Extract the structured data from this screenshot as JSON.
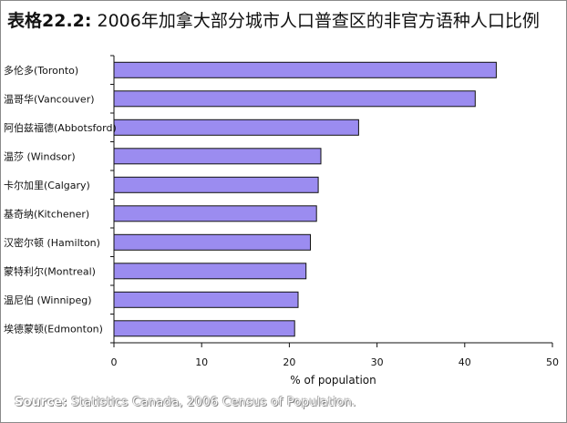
{
  "title_prefix": "表格22.2:",
  "title": "2006年加拿大部分城市人口普查区的非官方语种人口比例",
  "source_label": "Source:",
  "source_text": "Statistics Canada, 2006 Census of Population.",
  "colors": {
    "bar": "#9b8cf0",
    "bar_stroke": "#111111",
    "axis": "#111111"
  },
  "chart_data": {
    "type": "bar",
    "orientation": "horizontal",
    "categories": [
      "多伦多(Toronto)",
      "温哥华(Vancouver)",
      "阿伯兹福德(Abbotsford)",
      "温莎 (Windsor)",
      "卡尔加里(Calgary)",
      "基奇纳(Kitchener)",
      "汉密尔顿 (Hamilton)",
      "蒙特利尔(Montreal)",
      "温尼伯 (Winnipeg)",
      "埃德蒙顿(Edmonton)"
    ],
    "values": [
      43.6,
      41.2,
      27.9,
      23.6,
      23.3,
      23.1,
      22.4,
      21.9,
      21.0,
      20.6
    ],
    "xlabel": "% of population",
    "xlim": [
      0,
      50
    ],
    "xticks": [
      0,
      10,
      20,
      30,
      40,
      50
    ],
    "grid": false
  }
}
